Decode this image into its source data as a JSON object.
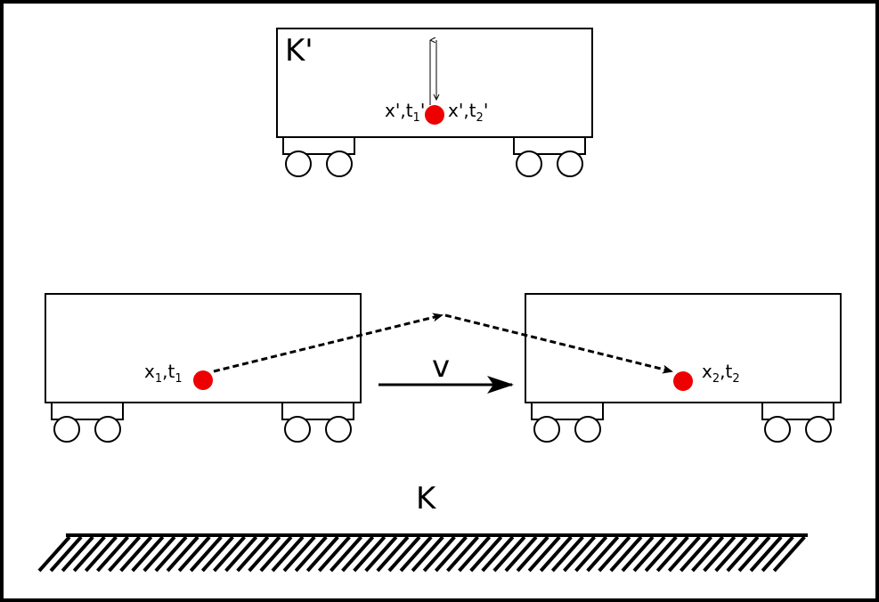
{
  "frames": {
    "moving": "K'",
    "ground": "K"
  },
  "events": {
    "e1_prime": {
      "x": "x'",
      "t": "t",
      "sub": "1",
      "prime": "'"
    },
    "e2_prime": {
      "x": "x'",
      "t": "t",
      "sub": "2",
      "prime": "'"
    },
    "e1": {
      "x": "x",
      "t": "t",
      "sub": "1"
    },
    "e2": {
      "x": "x",
      "t": "t",
      "sub": "2"
    }
  },
  "velocity_label": "v",
  "colors": {
    "event_dot": "#ee0000",
    "stroke": "#000000",
    "background": "#ffffff"
  }
}
